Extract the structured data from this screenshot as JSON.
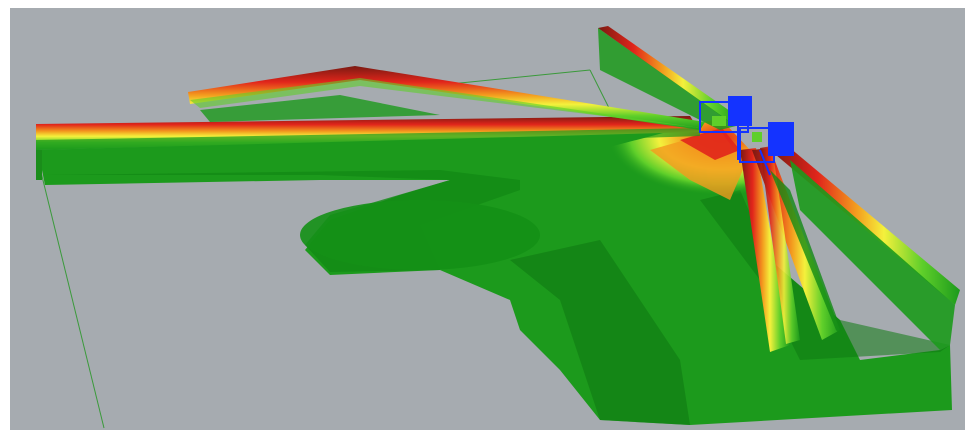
{
  "scene": {
    "subject": "3d-radiation-pattern-render",
    "colors": {
      "frame": "#ffffff",
      "viewport_bg": "#a6abb0",
      "ground_line": "#3a9a3a",
      "green_dark": "#0f7a12",
      "green": "#1c9a1c",
      "green_light": "#5fcf2a",
      "yellow": "#f4f13c",
      "orange": "#f39a1e",
      "red": "#e1251b",
      "dark_red": "#7a1a12",
      "blue": "#1433ff"
    }
  }
}
